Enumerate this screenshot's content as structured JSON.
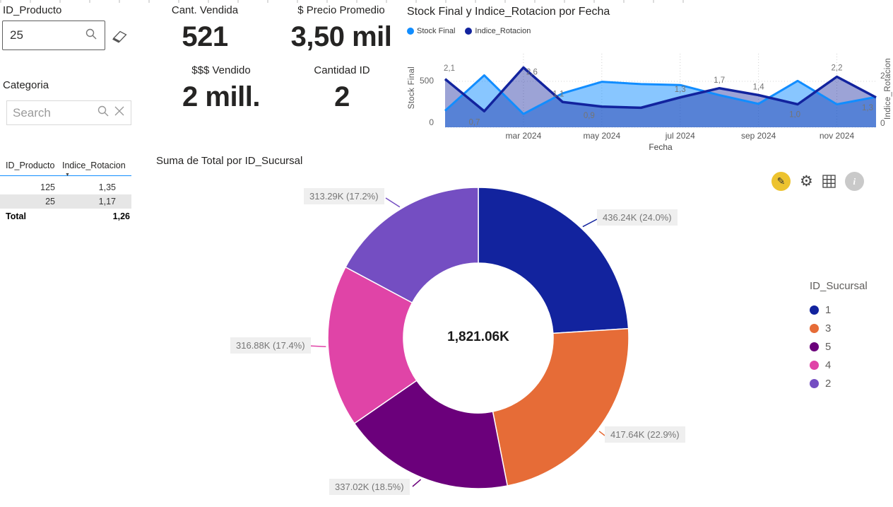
{
  "slicers": {
    "id_producto": {
      "label": "ID_Producto",
      "value": "25"
    },
    "categoria": {
      "label": "Categoria",
      "placeholder": "Search"
    }
  },
  "kpis": [
    {
      "label": "Cant. Vendida",
      "value": "521"
    },
    {
      "label": "$ Precio Promedio",
      "value": "3,50 mil"
    },
    {
      "label": "$$$ Vendido",
      "value": "2 mill."
    },
    {
      "label": "Cantidad ID",
      "value": "2"
    }
  ],
  "table": {
    "columns": [
      "ID_Producto",
      "Indice_Rotacion"
    ],
    "rows": [
      [
        "125",
        "1,35"
      ],
      [
        "25",
        "1,17"
      ]
    ],
    "selected_row_index": 1,
    "total_label": "Total",
    "total_value": "1,26"
  },
  "toolbar": {
    "icons": [
      "edit-pencil",
      "settings-gear",
      "grid-view",
      "info"
    ]
  },
  "chart_data": [
    {
      "type": "area",
      "title": "Stock Final y Indice_Rotacion por Fecha",
      "grid": true,
      "legend_position": "top-left",
      "x_label": "Fecha",
      "x_ticks_shown": [
        "mar 2024",
        "may 2024",
        "jul 2024",
        "sep 2024",
        "nov 2024"
      ],
      "categories": [
        "ene 2024",
        "feb 2024",
        "mar 2024",
        "abr 2024",
        "may 2024",
        "jun 2024",
        "jul 2024",
        "ago 2024",
        "sep 2024",
        "oct 2024",
        "nov 2024",
        "dic 2024"
      ],
      "y_left": {
        "title": "Stock Final",
        "ticks": [
          "0",
          "500"
        ],
        "range": [
          0,
          650
        ]
      },
      "y_right": {
        "title": "Indice_Rotacion",
        "ticks": [
          "0",
          "2"
        ],
        "range": [
          0,
          2.6
        ]
      },
      "series": [
        {
          "name": "Stock Final",
          "axis": "left",
          "color": "#118DFF",
          "values": [
            180,
            565,
            145,
            370,
            495,
            470,
            460,
            350,
            255,
            505,
            250,
            330
          ]
        },
        {
          "name": "Indice_Rotacion",
          "axis": "right",
          "color": "#12239E",
          "values": [
            2.1,
            0.7,
            2.6,
            1.1,
            0.9,
            0.85,
            1.3,
            1.7,
            1.4,
            1.0,
            2.2,
            1.3
          ],
          "point_labels": [
            "2,1",
            "0,7",
            "2,6",
            "1,1",
            "0,9",
            null,
            "1,3",
            "1,7",
            "1,4",
            "1,0",
            "2,2",
            "1,3"
          ]
        }
      ]
    },
    {
      "type": "donut",
      "title": "Suma de Total por ID_Sucursal",
      "center_total": "1,821.06K",
      "legend_title": "ID_Sucursal",
      "slices": [
        {
          "id": "1",
          "label": "436.24K (24.0%)",
          "value_k": 436.24,
          "pct": 24.0,
          "color": "#12239E"
        },
        {
          "id": "3",
          "label": "417.64K (22.9%)",
          "value_k": 417.64,
          "pct": 22.9,
          "color": "#E66C37"
        },
        {
          "id": "5",
          "label": "337.02K (18.5%)",
          "value_k": 337.02,
          "pct": 18.5,
          "color": "#6B007B"
        },
        {
          "id": "4",
          "label": "316.88K (17.4%)",
          "value_k": 316.88,
          "pct": 17.4,
          "color": "#E044A7"
        },
        {
          "id": "2",
          "label": "313.29K (17.2%)",
          "value_k": 313.29,
          "pct": 17.2,
          "color": "#744EC2"
        }
      ]
    }
  ]
}
